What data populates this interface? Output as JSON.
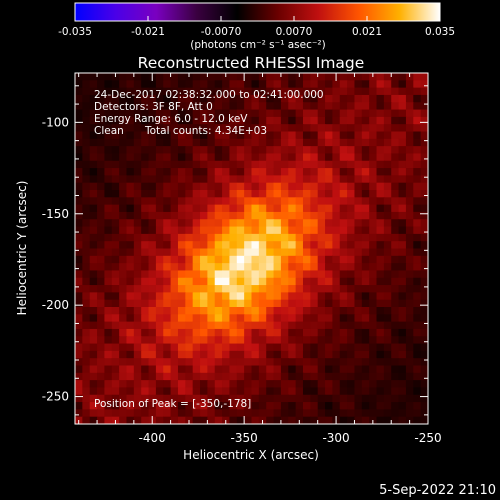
{
  "colorbar": {
    "ticks": [
      "-0.035",
      "-0.021",
      "-0.0070",
      "0.0070",
      "0.021",
      "0.035"
    ],
    "min": -0.035,
    "max": 0.035,
    "units_label": "(photons cm⁻² s⁻¹ asec⁻²)",
    "colors": [
      "#0000ff",
      "#4a00e8",
      "#7a00c0",
      "#3a0040",
      "#000000",
      "#6a0000",
      "#c01010",
      "#ff5500",
      "#ffb000",
      "#ffffff"
    ]
  },
  "chart_data": {
    "type": "heatmap",
    "title": "Reconstructed RHESSI Image",
    "xlabel": "Heliocentric X (arcsec)",
    "ylabel": "Heliocentric Y (arcsec)",
    "xlim": [
      -442,
      -250
    ],
    "ylim": [
      -265,
      -73
    ],
    "xticks": [
      -400,
      -350,
      -300,
      -250
    ],
    "yticks": [
      -100,
      -150,
      -200,
      -250
    ],
    "peak": {
      "x": -350,
      "y": -178,
      "value": 0.035
    },
    "annotations": {
      "time_range": "24-Dec-2017 02:38:32.000 to 02:41:00.000",
      "detectors": "Detectors: 3F 8F, Att 0",
      "energy": "Energy Range: 6.0 - 12.0 keV",
      "method": "Clean",
      "counts": "Total counts: 4.34E+03",
      "peak_text": "Position of Peak = [-350,-178]"
    }
  },
  "footer": {
    "date": "5-Sep-2022 21:10"
  }
}
